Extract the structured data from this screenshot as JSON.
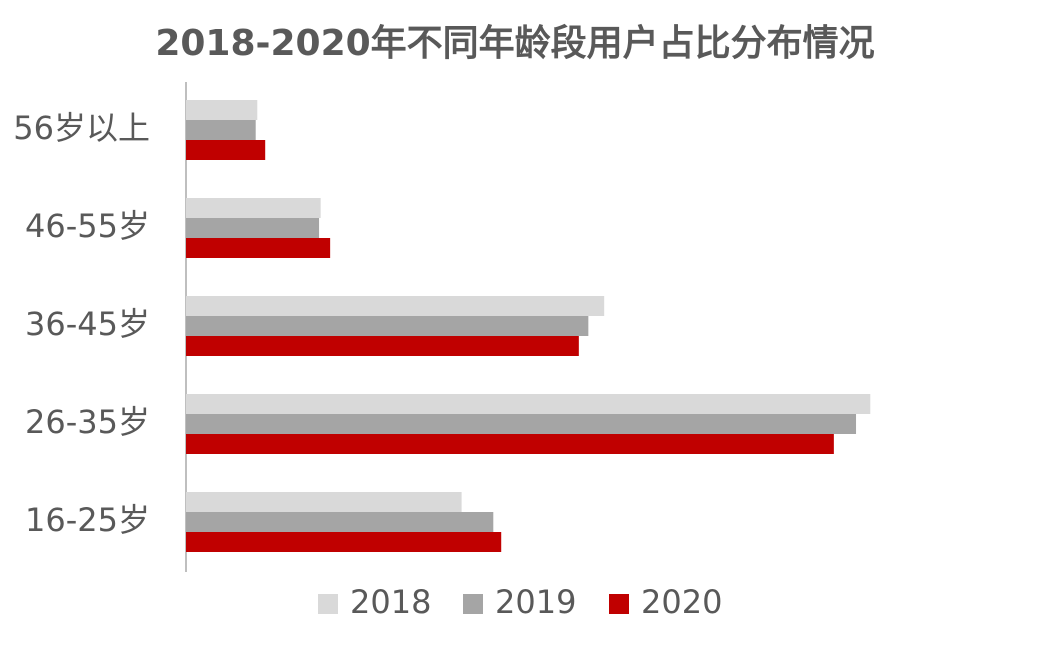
{
  "chart_data": {
    "type": "hbar",
    "title": "2018-2020年不同年龄段用户占比分布情况",
    "categories": [
      "56岁以上",
      "46-55岁",
      "36-45岁",
      "26-35岁",
      "16-25岁"
    ],
    "series": [
      {
        "name": "2018",
        "color": "#d9d9d9",
        "values": [
          4.5,
          8.5,
          26.4,
          43.2,
          17.4
        ]
      },
      {
        "name": "2019",
        "color": "#a5a5a5",
        "values": [
          4.4,
          8.4,
          25.4,
          42.3,
          19.4
        ]
      },
      {
        "name": "2020",
        "color": "#c00000",
        "values": [
          5.0,
          9.1,
          24.8,
          40.9,
          19.9
        ]
      }
    ],
    "xlim": [
      0,
      50
    ],
    "legend": "bottom"
  }
}
